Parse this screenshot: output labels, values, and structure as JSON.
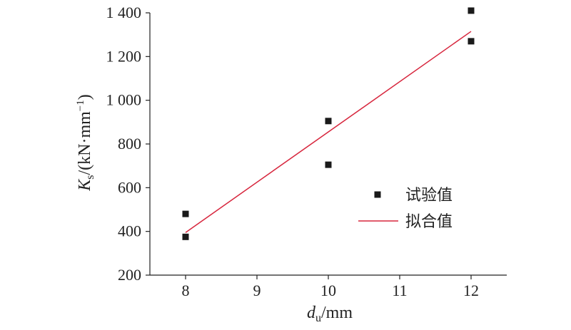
{
  "chart_data": {
    "type": "scatter",
    "xlabel": {
      "main": "d",
      "sub": "u",
      "rest": "/mm"
    },
    "ylabel": {
      "main": "K",
      "sub": "s",
      "rest": "/(kN·mm",
      "sup": "−1",
      "close": ")"
    },
    "xlim": [
      7.5,
      12.5
    ],
    "ylim": [
      200,
      1450
    ],
    "x_ticks": [
      8,
      9,
      10,
      11,
      12
    ],
    "x_tick_labels": [
      "8",
      "9",
      "10",
      "11",
      "12"
    ],
    "y_ticks": [
      200,
      400,
      600,
      800,
      1000,
      1200,
      1400
    ],
    "y_tick_labels": [
      "200",
      "400",
      "600",
      "800",
      "1 000",
      "1 200",
      "1 400"
    ],
    "grid": false,
    "legend_position": "right-middle",
    "series": [
      {
        "name": "试验值",
        "kind": "scatter",
        "marker": "square",
        "color": "#1a1a1a",
        "points": [
          {
            "x": 8,
            "y": 480
          },
          {
            "x": 8,
            "y": 375
          },
          {
            "x": 10,
            "y": 905
          },
          {
            "x": 10,
            "y": 705
          },
          {
            "x": 12,
            "y": 1410
          },
          {
            "x": 12,
            "y": 1270
          }
        ]
      },
      {
        "name": "拟合值",
        "kind": "line",
        "color": "#d7263d",
        "points": [
          {
            "x": 8,
            "y": 395
          },
          {
            "x": 12,
            "y": 1315
          }
        ]
      }
    ]
  }
}
